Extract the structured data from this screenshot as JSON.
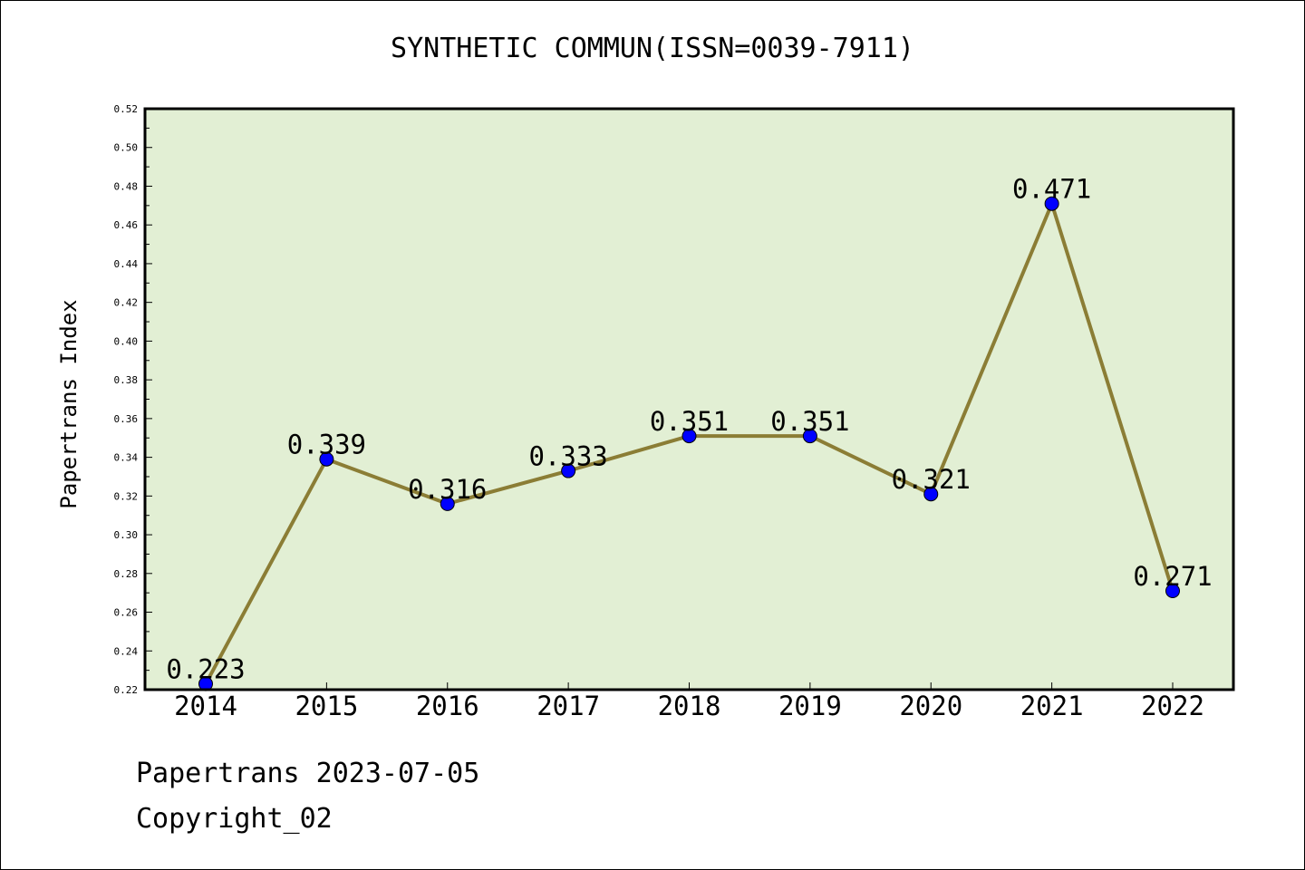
{
  "chart_data": {
    "type": "line",
    "title": "SYNTHETIC COMMUN(ISSN=0039-7911)",
    "xlabel": "",
    "ylabel": "Papertrans Index",
    "categories": [
      "2014",
      "2015",
      "2016",
      "2017",
      "2018",
      "2019",
      "2020",
      "2021",
      "2022"
    ],
    "series": [
      {
        "values": [
          0.223,
          0.339,
          0.316,
          0.333,
          0.351,
          0.351,
          0.321,
          0.471,
          0.271
        ]
      }
    ],
    "data_labels": [
      "0.223",
      "0.339",
      "0.316",
      "0.333",
      "0.351",
      "0.351",
      "0.321",
      "0.471",
      "0.271"
    ],
    "ylim": [
      0.22,
      0.52
    ],
    "yticks": [
      "0.22",
      "0.24",
      "0.26",
      "0.28",
      "0.30",
      "0.32",
      "0.34",
      "0.36",
      "0.38",
      "0.40",
      "0.42",
      "0.44",
      "0.46",
      "0.48",
      "0.50",
      "0.52"
    ],
    "grid": false,
    "colors": {
      "plot_background": "#e2efd4",
      "line": "#8b7d35",
      "marker": "#0000ff"
    }
  },
  "footer": {
    "date": "Papertrans 2023-07-05",
    "copyright": "Copyright_02"
  }
}
